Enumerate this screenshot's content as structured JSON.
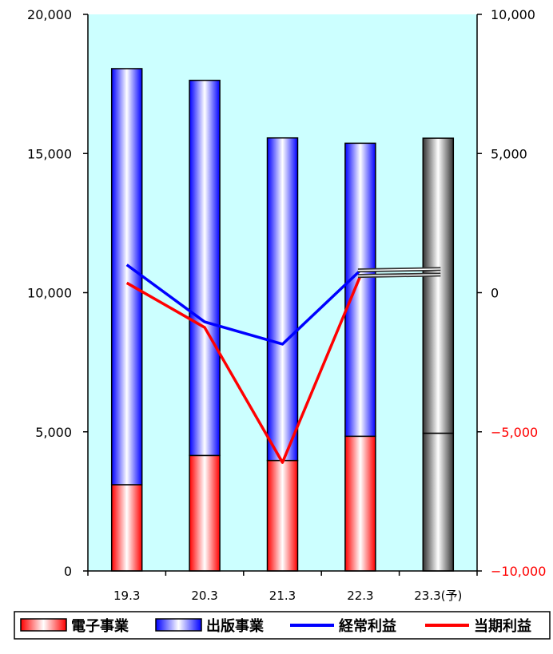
{
  "chart_data": {
    "type": "bar",
    "categories": [
      "19.3",
      "20.3",
      "21.3",
      "22.3",
      "23.3(予)"
    ],
    "left_axis": {
      "ylim": [
        0,
        20000
      ],
      "ticks": [
        0,
        5000,
        10000,
        15000,
        20000
      ],
      "tick_labels": [
        "0",
        "5,000",
        "10,000",
        "15,000",
        "20,000"
      ]
    },
    "right_axis": {
      "ylim": [
        -10000,
        10000
      ],
      "ticks": [
        -10000,
        -5000,
        0,
        5000,
        10000
      ],
      "tick_labels": [
        "−10,000",
        "−5,000",
        "0",
        "5,000",
        "10,000"
      ]
    },
    "bar_series": [
      {
        "name": "電子事業",
        "color": "#ff0000",
        "values": [
          3100,
          4150,
          3970,
          4840,
          4950
        ]
      },
      {
        "name": "出版事業",
        "color": "#0000ff",
        "values": [
          14950,
          13480,
          11590,
          10530,
          10600
        ]
      }
    ],
    "forecast_category": "23.3(予)",
    "forecast_color": "#555555",
    "line_series": [
      {
        "name": "経常利益",
        "color": "#0000ff",
        "axis": "right",
        "values": [
          1000,
          -1050,
          -1850,
          800,
          850
        ]
      },
      {
        "name": "当期利益",
        "color": "#ff0000",
        "axis": "right",
        "values": [
          350,
          -1250,
          -6100,
          600,
          650
        ]
      }
    ],
    "plot_background": "#ccffff",
    "legend_placement": "bottom"
  }
}
